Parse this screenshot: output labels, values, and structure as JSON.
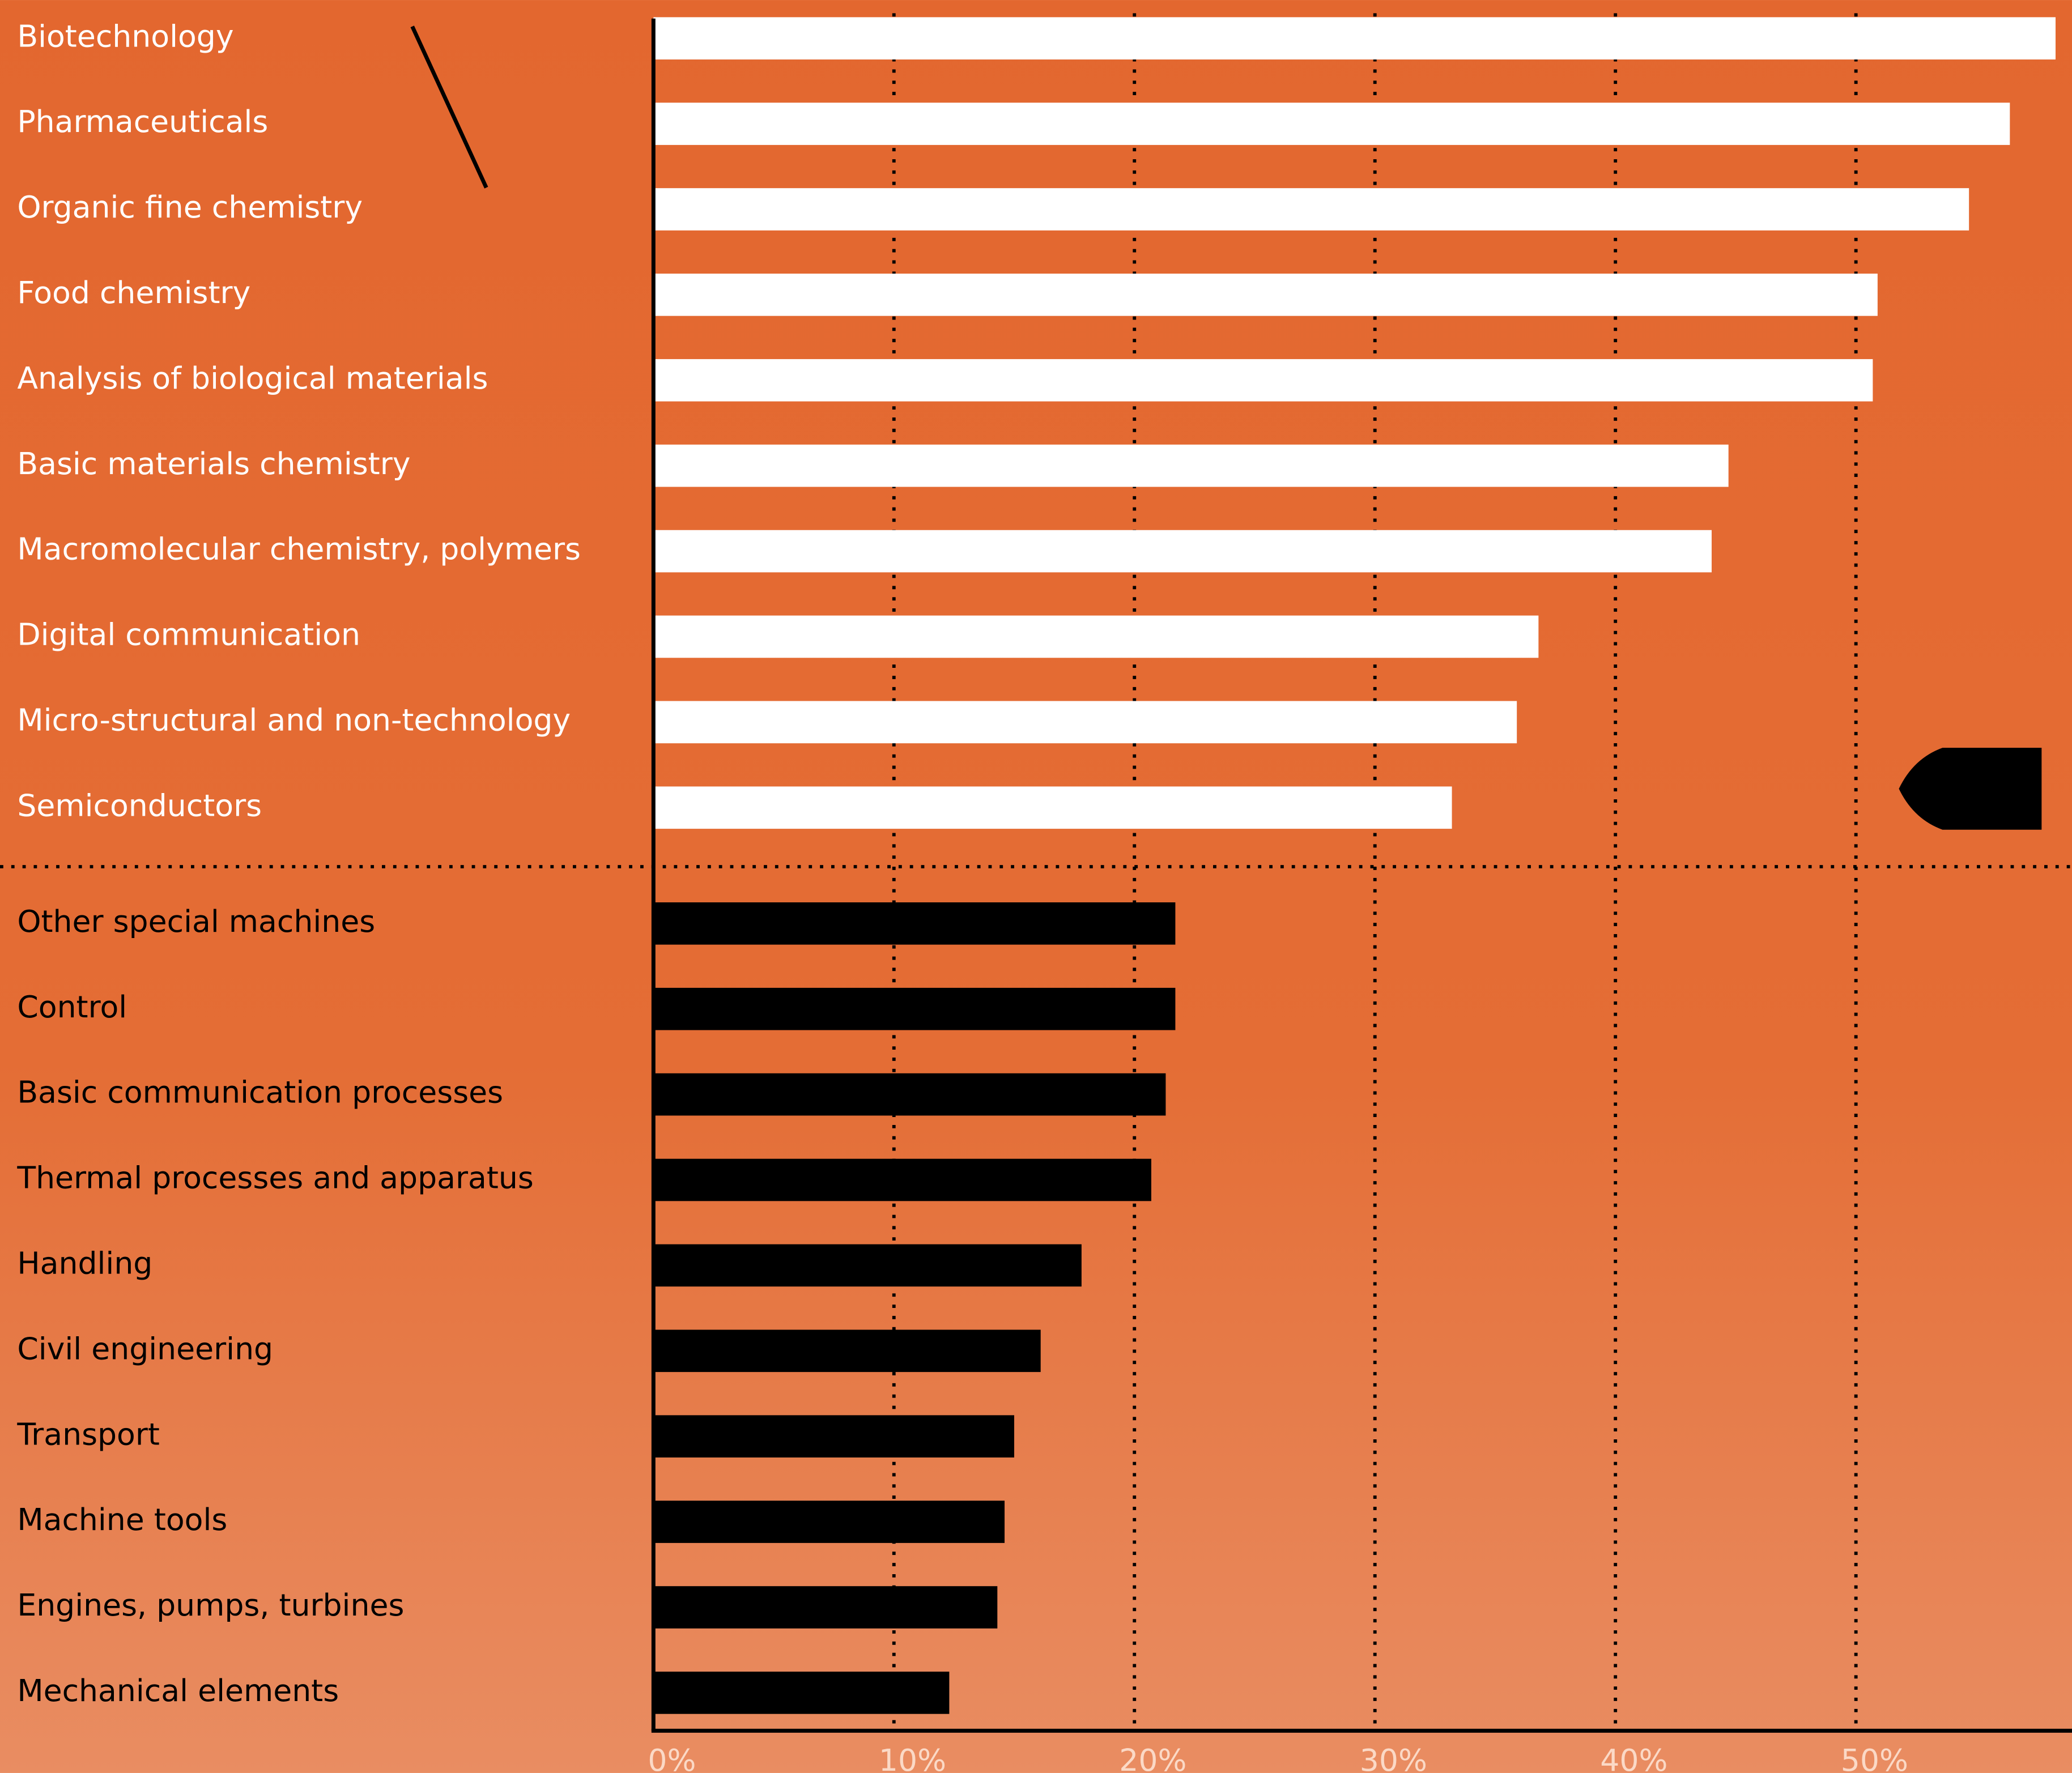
{
  "chart_data": {
    "type": "bar",
    "series": [
      {
        "color": "#ffffff",
        "categories": [
          "Biotechnology",
          "Pharmaceuticals",
          "Organic fine chemistry",
          "Food chemistry",
          "Analysis of biological materials",
          "Basic materials chemistry",
          "Macromolecular chemistry, polymers",
          "Digital communication",
          "Micro-structural and non-technology",
          "Semiconductors"
        ],
        "values": [
          58.3,
          56.4,
          54.7,
          50.9,
          50.7,
          44.7,
          44.0,
          36.8,
          35.9,
          33.2
        ]
      },
      {
        "color": "#000000",
        "categories": [
          "Other special machines",
          "Control",
          "Basic communication processes",
          "Thermal processes and apparatus",
          "Handling",
          "Civil engineering",
          "Transport",
          "Machine tools",
          "Engines, pumps, turbines",
          "Mechanical elements"
        ],
        "values": [
          21.7,
          21.7,
          21.3,
          20.7,
          17.8,
          16.1,
          15.0,
          14.6,
          14.3,
          12.3
        ]
      }
    ],
    "xlim": [
      0,
      59
    ],
    "xticks": [
      {
        "value": 0,
        "label": "0%"
      },
      {
        "value": 10,
        "label": "10%"
      },
      {
        "value": 20,
        "label": "20%"
      },
      {
        "value": 30,
        "label": "30%"
      },
      {
        "value": 40,
        "label": "40%"
      },
      {
        "value": 50,
        "label": "50%"
      }
    ],
    "grid": true
  }
}
